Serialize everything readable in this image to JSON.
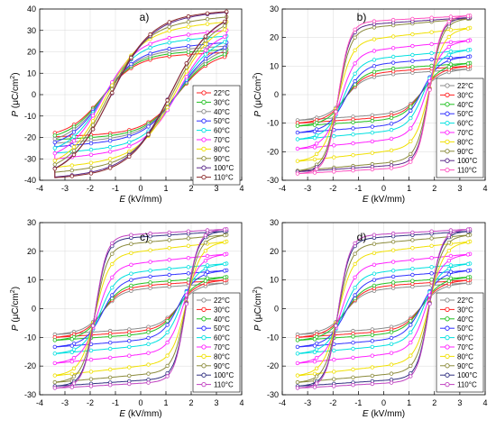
{
  "figure": {
    "legend_labels": [
      "22°C",
      "30°C",
      "40°C",
      "50°C",
      "60°C",
      "70°C",
      "80°C",
      "90°C",
      "100°C",
      "110°C"
    ],
    "colors": [
      "#ff2020",
      "#20c020",
      "#8a8a8a",
      "#3030ff",
      "#00e0e0",
      "#ff20ff",
      "#f0e000",
      "#8a8a3a",
      "#5a2a8a",
      "#8a2a2a"
    ],
    "panel_colors": [
      [
        "#ff2020",
        "#20c020",
        "#8a8a8a",
        "#3030ff",
        "#00e0e0",
        "#ff20ff",
        "#f0e000",
        "#8a8a3a",
        "#5a2a8a",
        "#8a2a2a"
      ],
      [
        "#8a8a8a",
        "#ff2020",
        "#20c020",
        "#3030ff",
        "#00e0e0",
        "#ff20ff",
        "#f0e000",
        "#8a8a3a",
        "#5a2a8a",
        "#ff50c0"
      ],
      [
        "#8a8a8a",
        "#ff2020",
        "#20c020",
        "#3030ff",
        "#00e0e0",
        "#ff20ff",
        "#f0e000",
        "#8a8a3a",
        "#303080",
        "#c040c0"
      ],
      [
        "#8a8a8a",
        "#ff2020",
        "#20c020",
        "#3030ff",
        "#00e0e0",
        "#ff20ff",
        "#f0e000",
        "#8a8a3a",
        "#303080",
        "#c040c0"
      ]
    ]
  },
  "chart_data": [
    {
      "type": "line",
      "panel_label": "a)",
      "xlabel_italic": "E",
      "xlabel_unit": " (kV/mm)",
      "ylabel_italic": "P",
      "ylabel_unit": " (μC/cm",
      "ylabel_sup": "2",
      "ylabel_close": ")",
      "xlim": [
        -4,
        4
      ],
      "ylim": [
        -40,
        40
      ],
      "xticks": [
        -4,
        -3,
        -2,
        -1,
        0,
        1,
        2,
        3,
        4
      ],
      "yticks": [
        -40,
        -30,
        -20,
        -10,
        0,
        10,
        20,
        30,
        40
      ],
      "grid": true,
      "legend_position": "center-right",
      "loop_shape": "slanted",
      "series": [
        {
          "name": "22°C",
          "Ps": 18,
          "Ec": 1.5,
          "k": 1.3,
          "lin": 0.5
        },
        {
          "name": "30°C",
          "Ps": 19,
          "Ec": 1.5,
          "k": 1.3,
          "lin": 0.6
        },
        {
          "name": "40°C",
          "Ps": 20,
          "Ec": 1.5,
          "k": 1.3,
          "lin": 0.8
        },
        {
          "name": "50°C",
          "Ps": 21,
          "Ec": 1.5,
          "k": 1.3,
          "lin": 1.0
        },
        {
          "name": "60°C",
          "Ps": 24,
          "Ec": 1.5,
          "k": 1.3,
          "lin": 1.0
        },
        {
          "name": "70°C",
          "Ps": 26,
          "Ec": 1.5,
          "k": 1.3,
          "lin": 1.2
        },
        {
          "name": "80°C",
          "Ps": 30,
          "Ec": 1.4,
          "k": 1.4,
          "lin": 1.2
        },
        {
          "name": "90°C",
          "Ps": 33,
          "Ec": 1.3,
          "k": 1.5,
          "lin": 1.0
        },
        {
          "name": "100°C",
          "Ps": 36,
          "Ec": 1.2,
          "k": 1.6,
          "lin": 0.8
        },
        {
          "name": "110°C",
          "Ps": 37,
          "Ec": 1.2,
          "k": 1.6,
          "lin": 0.6
        }
      ]
    },
    {
      "type": "line",
      "panel_label": "b)",
      "xlabel_italic": "E",
      "xlabel_unit": " (kV/mm)",
      "ylabel_italic": "P",
      "ylabel_unit": " (μC/cm",
      "ylabel_sup": "2",
      "ylabel_close": ")",
      "xlim": [
        -4,
        4
      ],
      "ylim": [
        -30,
        30
      ],
      "xticks": [
        -4,
        -3,
        -2,
        -1,
        0,
        1,
        2,
        3,
        4
      ],
      "yticks": [
        -30,
        -20,
        -10,
        0,
        10,
        20,
        30
      ],
      "grid": true,
      "legend_position": "bottom-right",
      "loop_shape": "square",
      "series": [
        {
          "name": "22°C",
          "Ps": 7,
          "Ec": 1.5,
          "k": 1.4,
          "lin": 0.6
        },
        {
          "name": "30°C",
          "Ps": 8,
          "Ec": 1.5,
          "k": 1.4,
          "lin": 0.6
        },
        {
          "name": "40°C",
          "Ps": 9,
          "Ec": 1.5,
          "k": 1.4,
          "lin": 0.6
        },
        {
          "name": "50°C",
          "Ps": 11,
          "Ec": 1.5,
          "k": 1.5,
          "lin": 0.7
        },
        {
          "name": "60°C",
          "Ps": 13,
          "Ec": 1.6,
          "k": 1.6,
          "lin": 0.8
        },
        {
          "name": "70°C",
          "Ps": 16,
          "Ec": 1.7,
          "k": 1.7,
          "lin": 0.9
        },
        {
          "name": "80°C",
          "Ps": 20,
          "Ec": 1.8,
          "k": 1.8,
          "lin": 1.0
        },
        {
          "name": "90°C",
          "Ps": 24,
          "Ec": 1.8,
          "k": 2.0,
          "lin": 0.8
        },
        {
          "name": "100°C",
          "Ps": 25,
          "Ec": 1.8,
          "k": 2.2,
          "lin": 0.6
        },
        {
          "name": "110°C",
          "Ps": 26,
          "Ec": 1.8,
          "k": 2.2,
          "lin": 0.5
        }
      ]
    },
    {
      "type": "line",
      "panel_label": "c)",
      "xlabel_italic": "E",
      "xlabel_unit": " (kV/mm)",
      "ylabel_italic": "P",
      "ylabel_unit": " (μC/cm",
      "ylabel_sup": "2",
      "ylabel_close": ")",
      "xlim": [
        -4,
        4
      ],
      "ylim": [
        -30,
        30
      ],
      "xticks": [
        -4,
        -3,
        -2,
        -1,
        0,
        1,
        2,
        3,
        4
      ],
      "yticks": [
        -30,
        -20,
        -10,
        0,
        10,
        20,
        30
      ],
      "grid": true,
      "legend_position": "bottom-right",
      "loop_shape": "square",
      "series": [
        {
          "name": "22°C",
          "Ps": 7,
          "Ec": 1.5,
          "k": 1.4,
          "lin": 0.6
        },
        {
          "name": "30°C",
          "Ps": 8,
          "Ec": 1.5,
          "k": 1.4,
          "lin": 0.6
        },
        {
          "name": "40°C",
          "Ps": 9,
          "Ec": 1.5,
          "k": 1.4,
          "lin": 0.6
        },
        {
          "name": "50°C",
          "Ps": 11,
          "Ec": 1.5,
          "k": 1.5,
          "lin": 0.7
        },
        {
          "name": "60°C",
          "Ps": 13,
          "Ec": 1.6,
          "k": 1.6,
          "lin": 0.8
        },
        {
          "name": "70°C",
          "Ps": 16,
          "Ec": 1.7,
          "k": 1.7,
          "lin": 0.9
        },
        {
          "name": "80°C",
          "Ps": 20,
          "Ec": 1.8,
          "k": 1.8,
          "lin": 1.0
        },
        {
          "name": "90°C",
          "Ps": 23,
          "Ec": 1.8,
          "k": 2.0,
          "lin": 0.8
        },
        {
          "name": "100°C",
          "Ps": 25,
          "Ec": 1.8,
          "k": 2.2,
          "lin": 0.6
        },
        {
          "name": "110°C",
          "Ps": 26,
          "Ec": 1.8,
          "k": 2.2,
          "lin": 0.5
        }
      ]
    },
    {
      "type": "line",
      "panel_label": "d)",
      "xlabel_italic": "E",
      "xlabel_unit": " (kV/mm)",
      "ylabel_italic": "P",
      "ylabel_unit": " (μC/cm",
      "ylabel_sup": "2",
      "ylabel_close": ")",
      "xlim": [
        -4,
        4
      ],
      "ylim": [
        -30,
        30
      ],
      "xticks": [
        -4,
        -3,
        -2,
        -1,
        0,
        1,
        2,
        3,
        4
      ],
      "yticks": [
        -30,
        -20,
        -10,
        0,
        10,
        20,
        30
      ],
      "grid": true,
      "legend_position": "bottom-right",
      "loop_shape": "square",
      "series": [
        {
          "name": "22°C",
          "Ps": 7,
          "Ec": 1.5,
          "k": 1.4,
          "lin": 0.6
        },
        {
          "name": "30°C",
          "Ps": 8,
          "Ec": 1.5,
          "k": 1.4,
          "lin": 0.6
        },
        {
          "name": "40°C",
          "Ps": 9,
          "Ec": 1.5,
          "k": 1.4,
          "lin": 0.6
        },
        {
          "name": "50°C",
          "Ps": 11,
          "Ec": 1.5,
          "k": 1.5,
          "lin": 0.7
        },
        {
          "name": "60°C",
          "Ps": 13,
          "Ec": 1.6,
          "k": 1.6,
          "lin": 0.8
        },
        {
          "name": "70°C",
          "Ps": 16,
          "Ec": 1.7,
          "k": 1.7,
          "lin": 0.9
        },
        {
          "name": "80°C",
          "Ps": 20,
          "Ec": 1.8,
          "k": 1.8,
          "lin": 1.0
        },
        {
          "name": "90°C",
          "Ps": 23,
          "Ec": 1.8,
          "k": 2.0,
          "lin": 0.8
        },
        {
          "name": "100°C",
          "Ps": 25,
          "Ec": 1.8,
          "k": 2.2,
          "lin": 0.6
        },
        {
          "name": "110°C",
          "Ps": 26,
          "Ec": 1.8,
          "k": 2.2,
          "lin": 0.5
        }
      ]
    }
  ]
}
